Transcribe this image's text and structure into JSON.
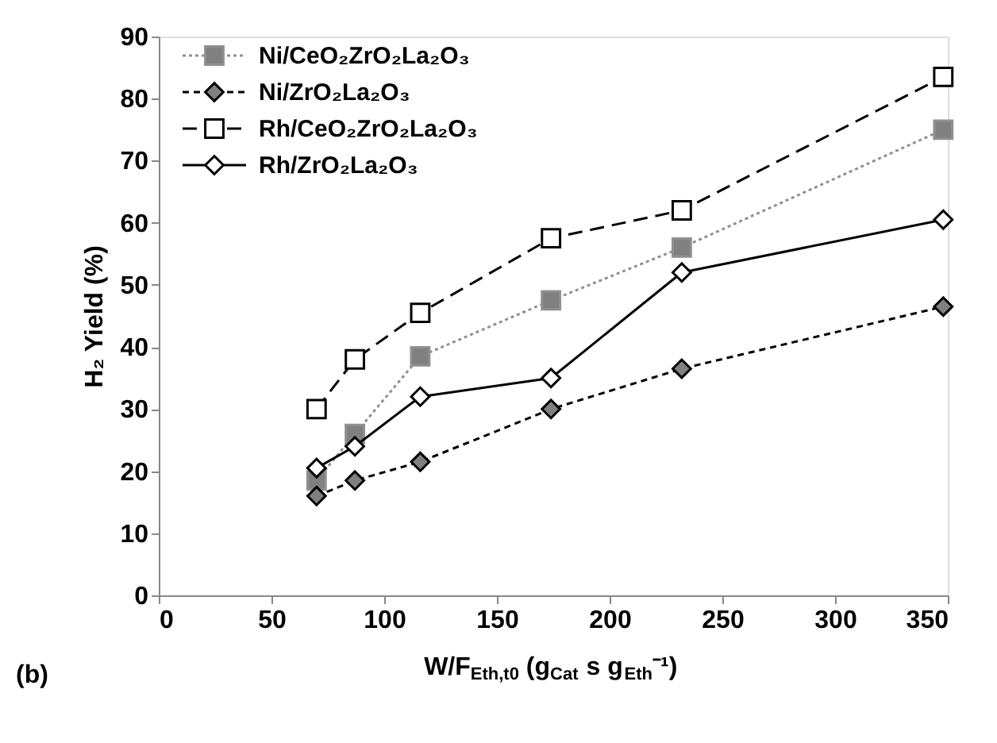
{
  "chart_data": {
    "type": "line",
    "xlabel": "W/F$_{Eth,t0}$ (g$_{Cat}$ s g$_{Eth}$⁻¹)",
    "ylabel": "H₂ Yield (%)",
    "x": [
      70,
      87,
      116,
      174,
      232,
      348
    ],
    "series": [
      {
        "name": "Ni/CeO₂ZrO₂La₂O₃",
        "color": "#909090",
        "colors": [
          "#808080",
          "#808080",
          "#808080",
          "#808080",
          "#808080",
          "#808080"
        ],
        "marker": "square",
        "line_style": "dotted",
        "values": [
          18.5,
          26,
          38.5,
          47.5,
          56,
          75
        ]
      },
      {
        "name": "Ni/ZrO₂La₂O₃",
        "color": "#000000",
        "colors": [
          "#808080",
          "#808080",
          "#808080",
          "#808080",
          "#808080",
          "#808080"
        ],
        "marker": "diamond",
        "line_style": "dashed",
        "values": [
          16,
          18.5,
          21.5,
          30,
          36.5,
          46.5
        ]
      },
      {
        "name": "Rh/CeO₂ZrO₂La₂O₃",
        "color": "#000000",
        "colors": [
          "#ffffff",
          "#ffffff",
          "#ffffff",
          "#ffffff",
          "#ffffff",
          "#ffffff"
        ],
        "marker": "square",
        "line_style": "dashed",
        "values": [
          30,
          38,
          45.5,
          57.5,
          62,
          83.5
        ]
      },
      {
        "name": "Rh/ZrO₂La₂O₃",
        "color": "#000000",
        "colors": [
          "#ffffff",
          "#ffffff",
          "#ffffff",
          "#ffffff",
          "#ffffff",
          "#ffffff"
        ],
        "marker": "diamond",
        "line_style": "solid",
        "values": [
          20.5,
          24,
          32,
          35,
          52,
          60.5
        ]
      }
    ],
    "xlim": [
      0,
      350
    ],
    "xticks": [
      0,
      50,
      100,
      150,
      200,
      250,
      300,
      350
    ],
    "ylim": [
      0,
      90
    ],
    "yticks": [
      0,
      10,
      20,
      30,
      40,
      50,
      60,
      70,
      80,
      90
    ],
    "grid": false,
    "legend": "top left",
    "annotations": [
      "(b)"
    ]
  }
}
